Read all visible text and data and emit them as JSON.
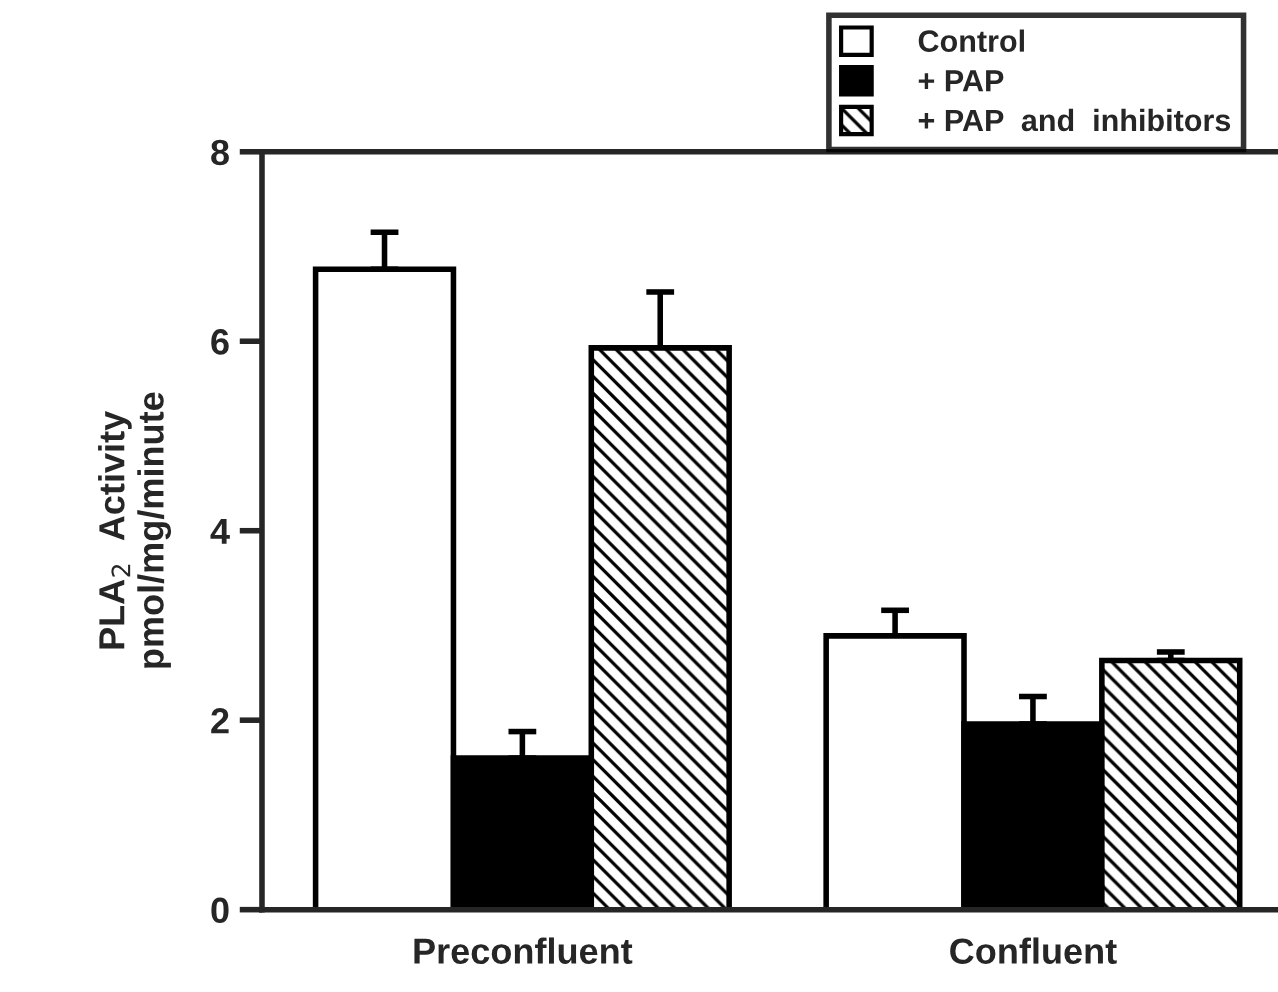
{
  "chart_data": {
    "type": "bar",
    "ylabel": "PLA$_{2}$  Activity\npmol/mg/minute",
    "categories": [
      "Preconfluent",
      "Confluent"
    ],
    "series": [
      {
        "name": "Control",
        "color": "#ffffff",
        "values": [
          6.76,
          2.89
        ],
        "errors": [
          [
            6.76,
            7.15
          ],
          [
            2.89,
            3.16
          ]
        ]
      },
      {
        "name": "+ PAP",
        "color": "#000000",
        "values": [
          1.6,
          1.96
        ],
        "errors": [
          [
            1.6,
            1.88
          ],
          [
            1.96,
            2.25
          ]
        ]
      },
      {
        "name": "+ PAP  and  inhibitors",
        "color": "#000000",
        "values": [
          5.93,
          2.63
        ],
        "errors": [
          [
            5.93,
            6.52
          ],
          [
            2.63,
            2.72
          ]
        ]
      }
    ],
    "ylim": [
      0,
      8
    ],
    "yticks": [
      0,
      2,
      4,
      6,
      8
    ],
    "grid": false,
    "legend": "top right"
  }
}
